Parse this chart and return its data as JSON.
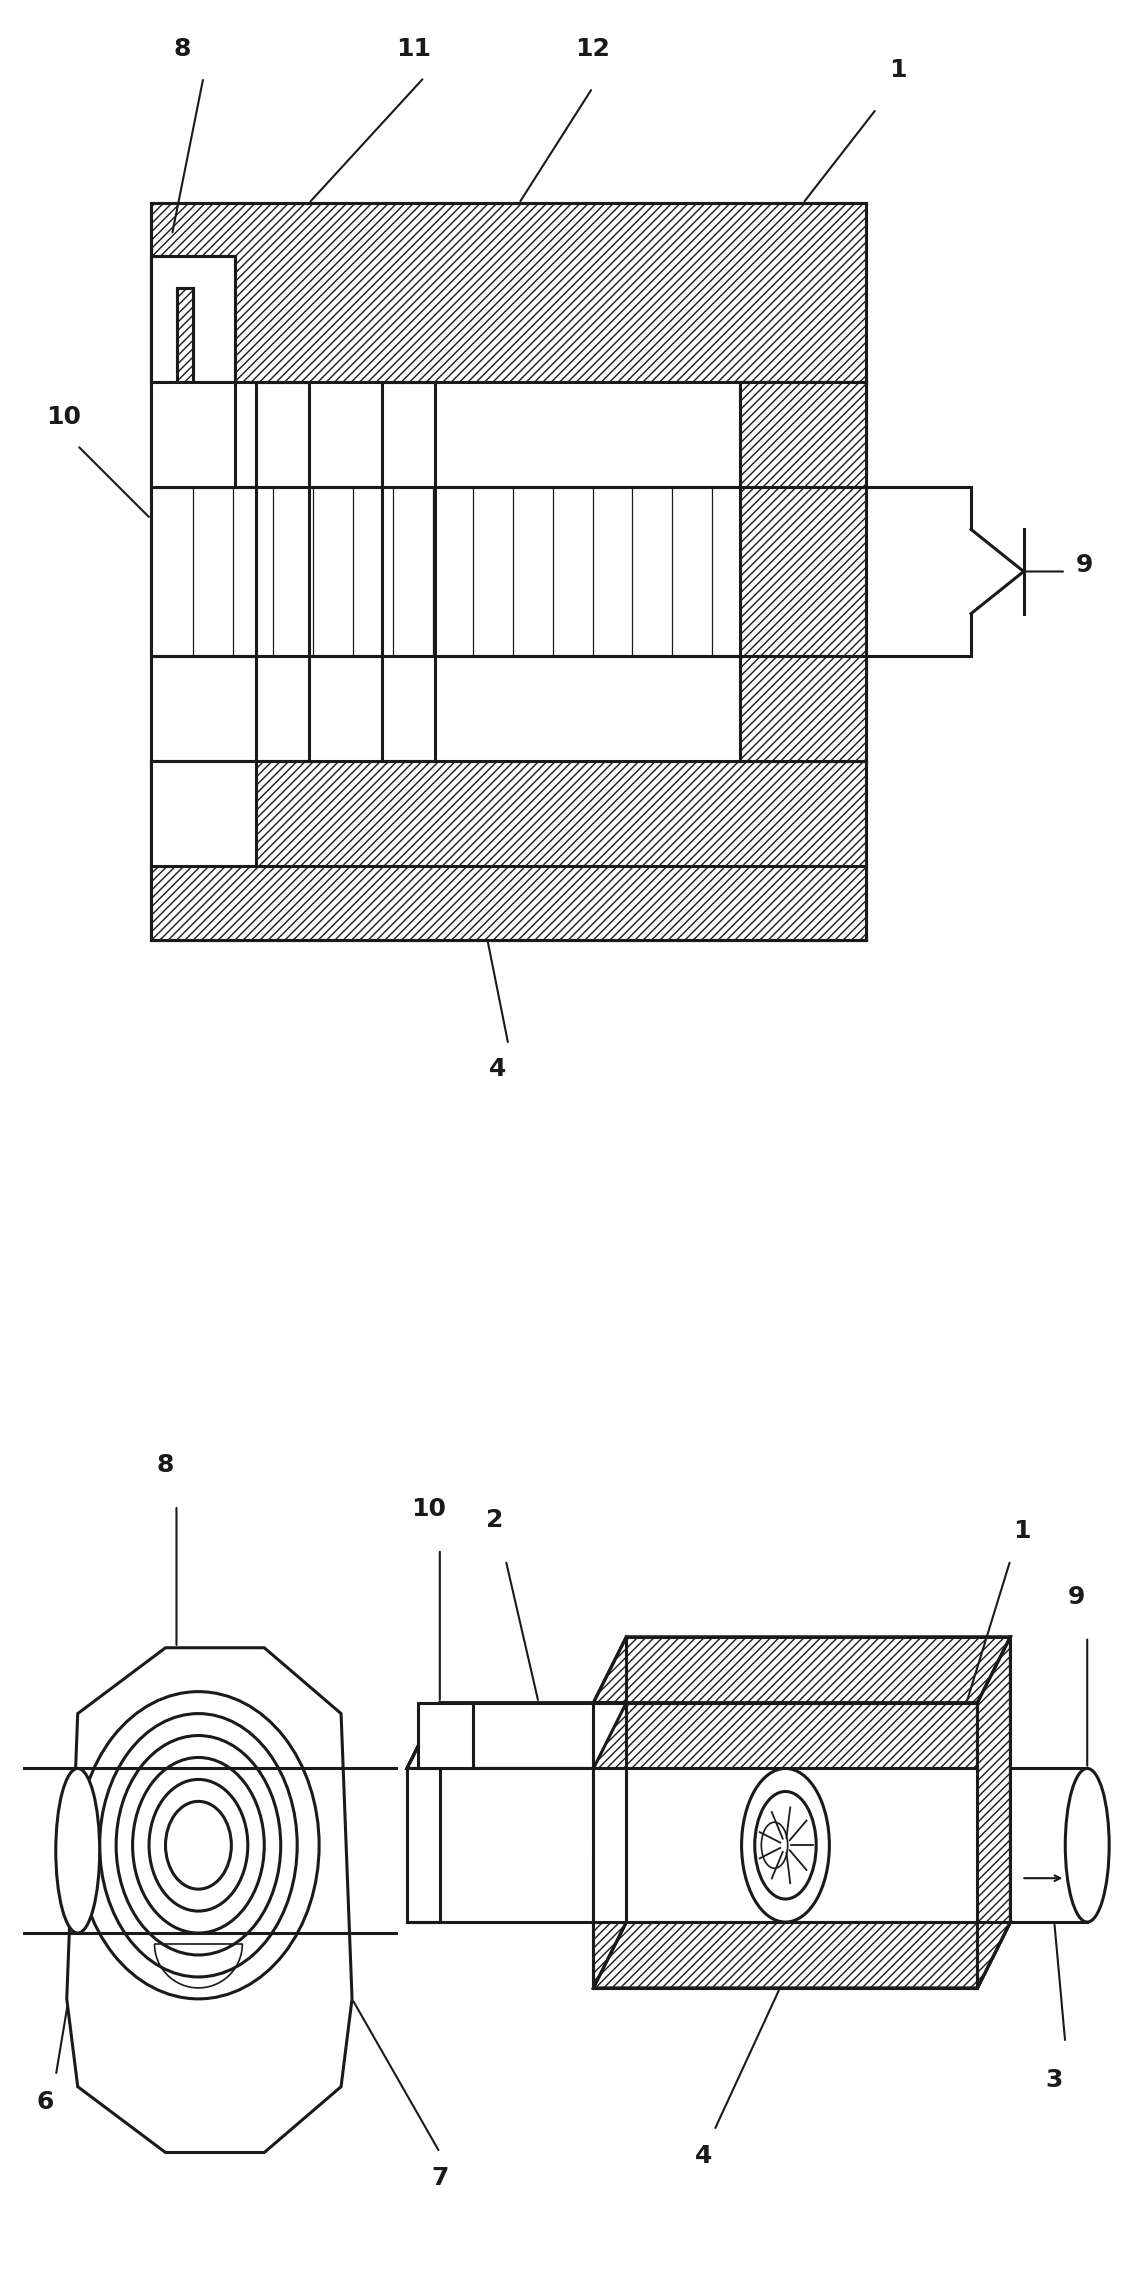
{
  "bg_color": "#ffffff",
  "lc": "#1a1a1a",
  "lw": 2.2,
  "lw_thin": 1.2,
  "fig_width": 11.43,
  "fig_height": 22.86,
  "hatch": "////",
  "font_size": 18,
  "font_weight": "bold"
}
